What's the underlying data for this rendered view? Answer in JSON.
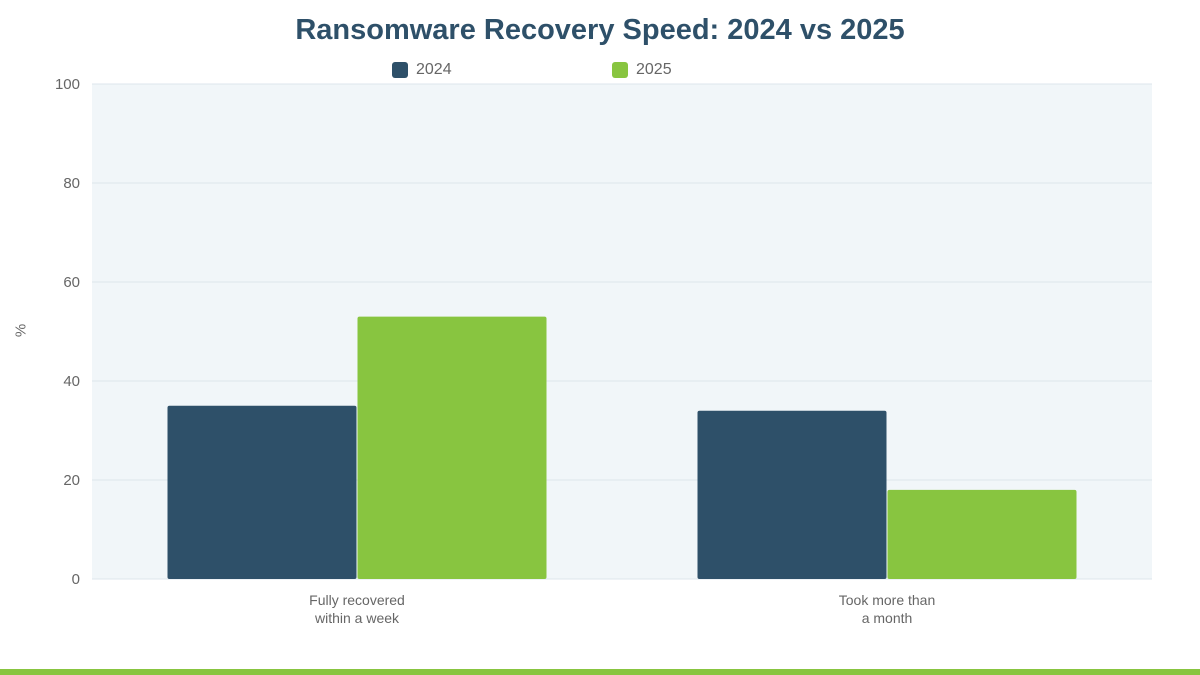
{
  "chart_data": {
    "type": "bar",
    "title": "Ransomware Recovery Speed: 2024 vs 2025",
    "xlabel": "",
    "ylabel": "%",
    "ylim": [
      0,
      100
    ],
    "yticks": [
      "0",
      "20",
      "40",
      "60",
      "80",
      "100"
    ],
    "categories": [
      [
        "Fully recovered",
        "within a week"
      ],
      [
        "Took more than",
        "a month"
      ]
    ],
    "series": [
      {
        "name": "2024",
        "color": "#2e5069",
        "values": [
          35,
          34
        ]
      },
      {
        "name": "2025",
        "color": "#88c540",
        "values": [
          53,
          18
        ]
      }
    ],
    "grid": true,
    "legend_position": "top-center",
    "plot_background": "#f1f6f9",
    "accent_bar_color": "#88c540"
  }
}
